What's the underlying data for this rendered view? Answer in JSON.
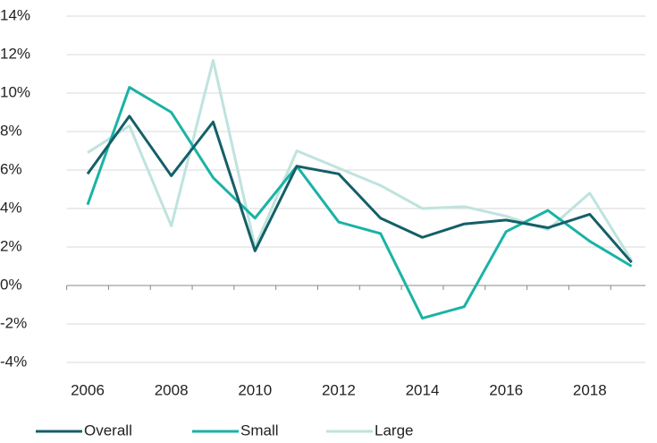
{
  "chart_data": {
    "type": "line",
    "x": [
      2006,
      2007,
      2008,
      2009,
      2010,
      2011,
      2012,
      2013,
      2014,
      2015,
      2016,
      2017,
      2018,
      2019
    ],
    "series": [
      {
        "name": "Overall",
        "color": "#145f68",
        "values": [
          5.8,
          8.8,
          5.7,
          8.5,
          1.8,
          6.2,
          5.8,
          3.5,
          2.5,
          3.2,
          3.4,
          3.0,
          3.7,
          1.2
        ]
      },
      {
        "name": "Small",
        "color": "#1ab3a6",
        "values": [
          4.2,
          10.3,
          9.0,
          5.6,
          3.5,
          6.2,
          3.3,
          2.7,
          -1.7,
          -1.1,
          2.8,
          3.9,
          2.3,
          1.0
        ]
      },
      {
        "name": "Large",
        "color": "#bfe3de",
        "values": [
          6.9,
          8.3,
          3.1,
          11.7,
          2.0,
          7.0,
          6.1,
          5.2,
          4.0,
          4.1,
          3.6,
          2.9,
          4.8,
          1.3
        ]
      }
    ],
    "xlim": [
      2005.5,
      2019.5
    ],
    "xticks": [
      2006,
      2008,
      2010,
      2012,
      2014,
      2016,
      2018
    ],
    "ylim": [
      -4,
      14
    ],
    "yticks": [
      {
        "value": -4,
        "label": "-4%"
      },
      {
        "value": -2,
        "label": "-2%"
      },
      {
        "value": 0,
        "label": "0%"
      },
      {
        "value": 2,
        "label": "2%"
      },
      {
        "value": 4,
        "label": "4%"
      },
      {
        "value": 6,
        "label": "6%"
      },
      {
        "value": 8,
        "label": "8%"
      },
      {
        "value": 10,
        "label": "10%"
      },
      {
        "value": 12,
        "label": "12%"
      },
      {
        "value": 14,
        "label": "14%"
      }
    ],
    "grid": true,
    "legend": "bottom"
  }
}
